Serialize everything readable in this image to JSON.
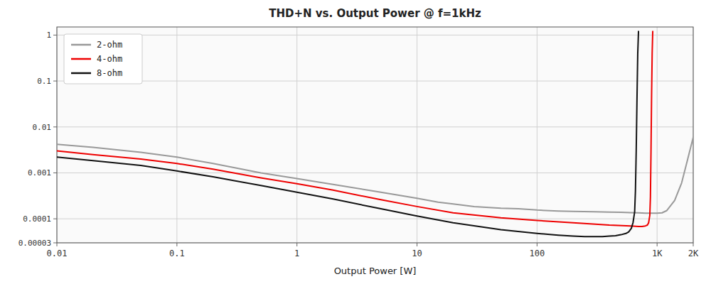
{
  "chart_data": {
    "type": "line",
    "title": "THD+N vs. Output Power @ f=1kHz",
    "x_label": "Output Power [W]",
    "log": true,
    "grid": true,
    "legend": "upper left",
    "xlim": [
      0.01,
      2000
    ],
    "ylim": [
      3e-05,
      1.5
    ],
    "xticks": [
      0.01,
      0.1,
      1,
      10,
      100,
      {
        "value": 1000,
        "label": "1K"
      },
      {
        "value": 2000,
        "label": "2K"
      }
    ],
    "yticks": [
      1,
      0.1,
      0.01,
      0.001,
      0.0001,
      3e-05
    ],
    "series": [
      {
        "name": "2-ohm",
        "color": "#999999",
        "x": [
          0.01,
          0.02,
          0.05,
          0.1,
          0.2,
          0.5,
          1,
          2,
          5,
          10,
          15,
          20,
          30,
          50,
          70,
          100,
          150,
          200,
          300,
          400,
          500,
          600,
          700,
          800,
          900,
          1000,
          1100,
          1200,
          1400,
          1600,
          1800,
          2000
        ],
        "values": [
          0.0042,
          0.0036,
          0.0028,
          0.0022,
          0.0016,
          0.001,
          0.00075,
          0.00056,
          0.00038,
          0.00028,
          0.00023,
          0.00021,
          0.000185,
          0.00017,
          0.000165,
          0.000155,
          0.000148,
          0.000145,
          0.000142,
          0.00014,
          0.000138,
          0.000136,
          0.000135,
          0.000133,
          0.000132,
          0.000132,
          0.000135,
          0.00015,
          0.00025,
          0.0006,
          0.002,
          0.006
        ]
      },
      {
        "name": "4-ohm",
        "color": "#ee0000",
        "x": [
          0.01,
          0.02,
          0.05,
          0.1,
          0.2,
          0.5,
          1,
          2,
          5,
          10,
          20,
          50,
          100,
          200,
          400,
          600,
          700,
          750,
          800,
          830,
          850,
          870,
          880,
          890,
          900,
          910,
          920
        ],
        "values": [
          0.003,
          0.0025,
          0.002,
          0.0016,
          0.0012,
          0.00078,
          0.00058,
          0.00042,
          0.00026,
          0.000185,
          0.000135,
          0.000105,
          9.2e-05,
          8.2e-05,
          7.3e-05,
          7e-05,
          6.8e-05,
          6.8e-05,
          7e-05,
          7.3e-05,
          8.2e-05,
          0.00012,
          0.0003,
          0.003,
          0.05,
          0.4,
          1.2
        ]
      },
      {
        "name": "8-ohm",
        "color": "#111111",
        "x": [
          0.01,
          0.02,
          0.05,
          0.1,
          0.2,
          0.5,
          1,
          2,
          5,
          10,
          20,
          50,
          100,
          150,
          200,
          250,
          300,
          350,
          400,
          450,
          500,
          550,
          580,
          610,
          630,
          650,
          660,
          670,
          680,
          690,
          700
        ],
        "values": [
          0.0022,
          0.00185,
          0.00145,
          0.0011,
          0.00082,
          0.00053,
          0.00038,
          0.00027,
          0.000165,
          0.000115,
          8.2e-05,
          5.8e-05,
          4.8e-05,
          4.4e-05,
          4.2e-05,
          4.1e-05,
          4.1e-05,
          4.1e-05,
          4.2e-05,
          4.3e-05,
          4.5e-05,
          4.8e-05,
          5.2e-05,
          6.2e-05,
          8.2e-05,
          0.00014,
          0.0004,
          0.003,
          0.04,
          0.4,
          1.2
        ]
      }
    ]
  }
}
